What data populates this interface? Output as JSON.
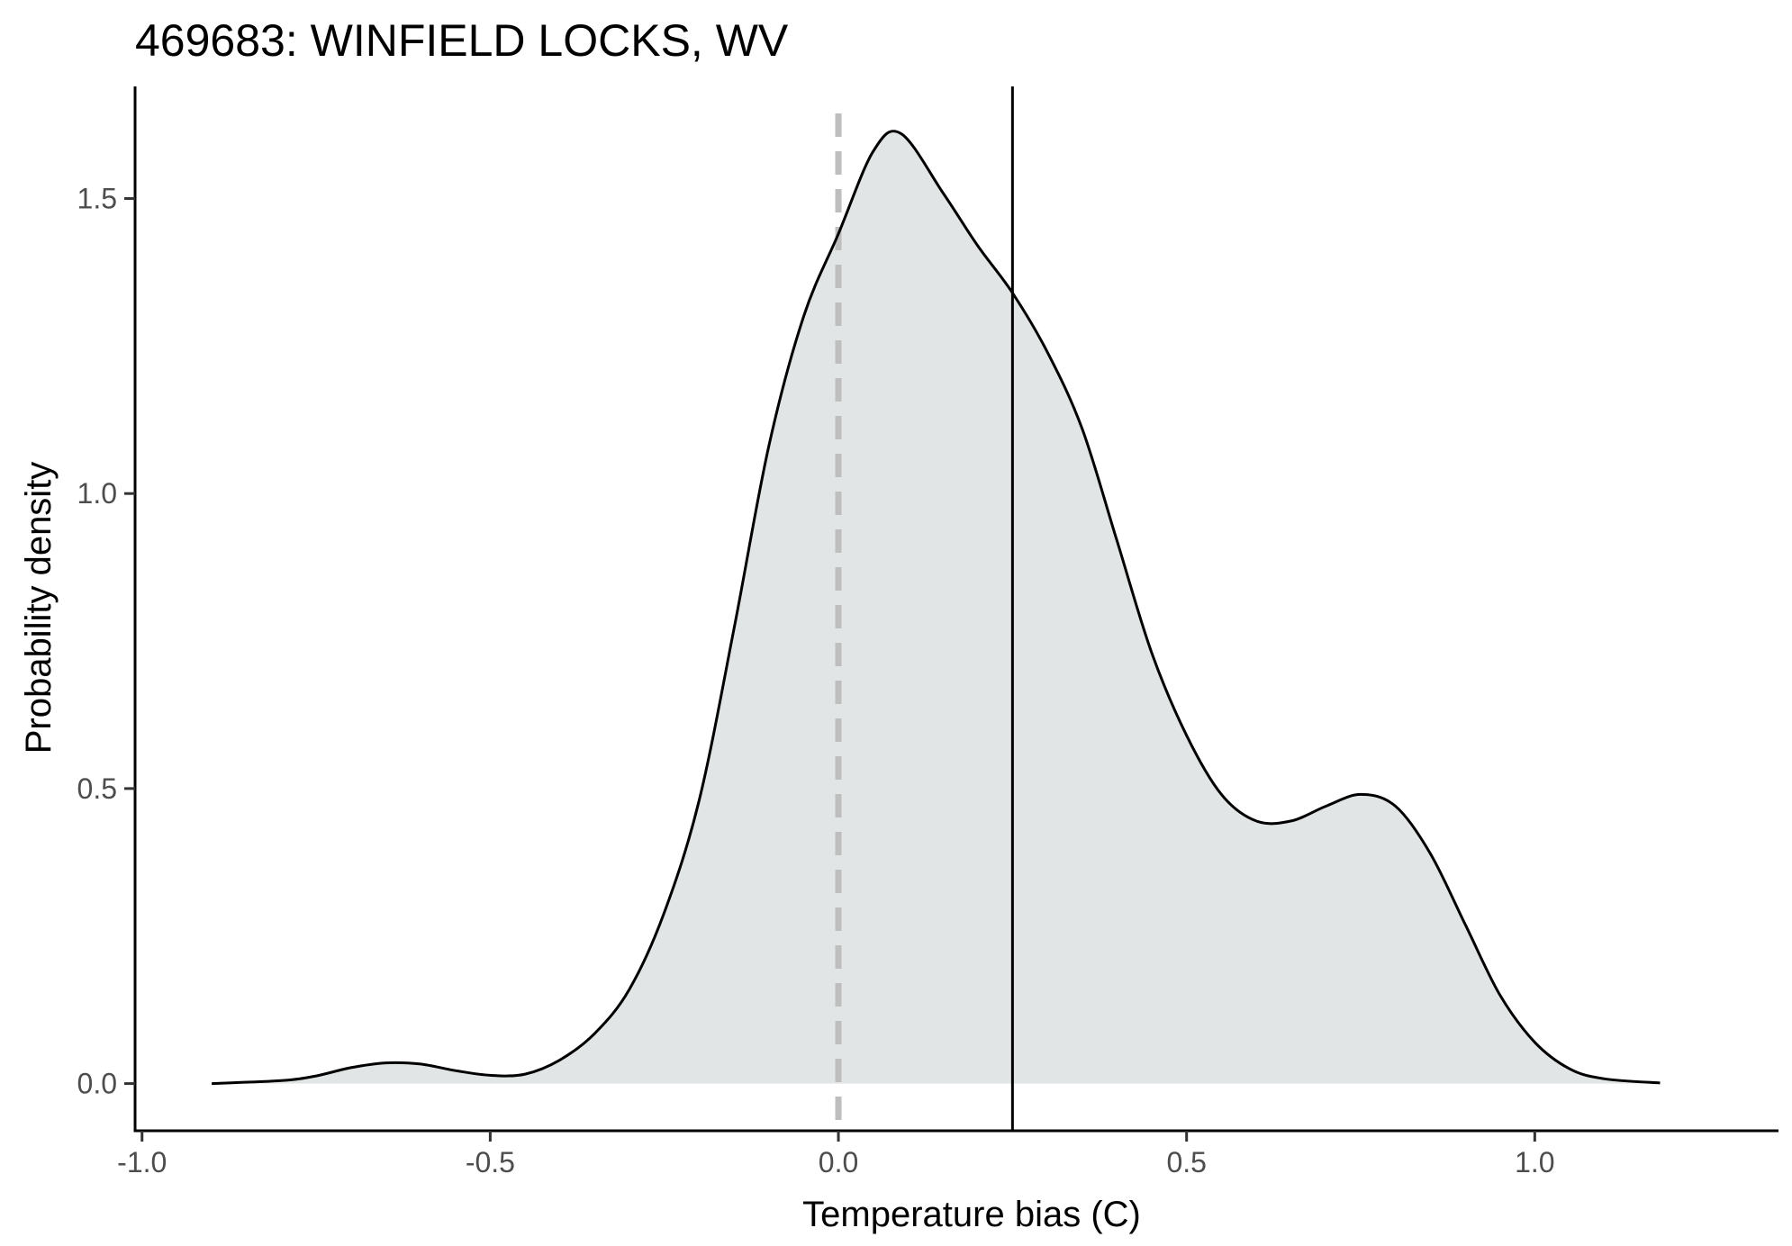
{
  "chart_data": {
    "type": "area",
    "title": "469683: WINFIELD LOCKS, WV",
    "xlabel": "Temperature bias (C)",
    "ylabel": "Probability density",
    "xlim": [
      -1.01,
      1.35
    ],
    "ylim": [
      -0.08,
      1.69
    ],
    "x_ticks": [
      -1.0,
      -0.5,
      0.0,
      0.5,
      1.0
    ],
    "x_tick_labels": [
      "-1.0",
      "-0.5",
      "0.0",
      "0.5",
      "1.0"
    ],
    "y_ticks": [
      0.0,
      0.5,
      1.0,
      1.5
    ],
    "y_tick_labels": [
      "0.0",
      "0.5",
      "1.0",
      "1.5"
    ],
    "grid": false,
    "fill_color": "#e2e5e6",
    "line_color": "#000000",
    "reference_lines": [
      {
        "x": 0.0,
        "style": "dashed",
        "color": "#bebebe"
      },
      {
        "x": 0.25,
        "style": "solid",
        "color": "#000000"
      }
    ],
    "density": {
      "x": [
        -0.9,
        -0.8,
        -0.75,
        -0.7,
        -0.65,
        -0.6,
        -0.55,
        -0.5,
        -0.45,
        -0.4,
        -0.35,
        -0.3,
        -0.25,
        -0.2,
        -0.15,
        -0.1,
        -0.05,
        0.0,
        0.05,
        0.09,
        0.15,
        0.2,
        0.25,
        0.3,
        0.35,
        0.4,
        0.45,
        0.5,
        0.55,
        0.6,
        0.65,
        0.7,
        0.75,
        0.8,
        0.85,
        0.9,
        0.95,
        1.0,
        1.05,
        1.1,
        1.18
      ],
      "y": [
        0.0,
        0.005,
        0.013,
        0.027,
        0.035,
        0.033,
        0.022,
        0.014,
        0.016,
        0.04,
        0.085,
        0.16,
        0.29,
        0.48,
        0.77,
        1.08,
        1.3,
        1.44,
        1.58,
        1.61,
        1.51,
        1.42,
        1.34,
        1.24,
        1.11,
        0.92,
        0.73,
        0.59,
        0.49,
        0.445,
        0.445,
        0.47,
        0.49,
        0.47,
        0.39,
        0.27,
        0.15,
        0.07,
        0.025,
        0.008,
        0.001
      ]
    }
  }
}
